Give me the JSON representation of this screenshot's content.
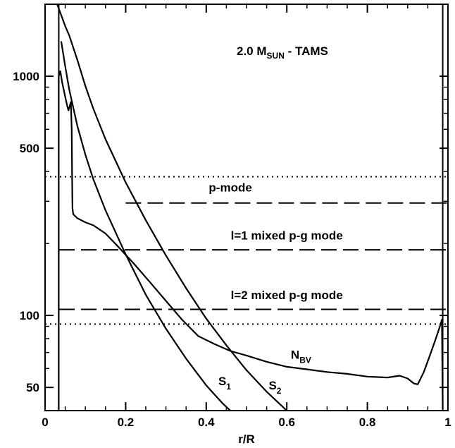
{
  "chart_data": {
    "type": "line",
    "title": "2.0 M",
    "title_sub": "SUN",
    "title_suffix": " - TAMS",
    "xlabel": "r/R",
    "ylabel": "",
    "xlim": [
      0,
      1.0
    ],
    "ylim": [
      40,
      2000
    ],
    "yscale": "log",
    "grid": false,
    "x_ticks": [
      {
        "value": 0,
        "label": "0"
      },
      {
        "value": 0.2,
        "label": "0.2"
      },
      {
        "value": 0.4,
        "label": "0.4"
      },
      {
        "value": 0.6,
        "label": "0.6"
      },
      {
        "value": 0.8,
        "label": "0.8"
      },
      {
        "value": 1.0,
        "label": "1"
      }
    ],
    "y_ticks": [
      {
        "value": 50,
        "label": "50"
      },
      {
        "value": 100,
        "label": "100"
      },
      {
        "value": 500,
        "label": "500"
      },
      {
        "value": 1000,
        "label": "1000"
      }
    ],
    "series": [
      {
        "name": "N",
        "name_sub": "BV",
        "label_at": [
          0.61,
          66
        ],
        "style": "solid",
        "points": [
          [
            0.034,
            40
          ],
          [
            0.034,
            1000
          ],
          [
            0.038,
            1050
          ],
          [
            0.042,
            950
          ],
          [
            0.045,
            900
          ],
          [
            0.05,
            820
          ],
          [
            0.055,
            750
          ],
          [
            0.058,
            720
          ],
          [
            0.062,
            760
          ],
          [
            0.064,
            780
          ],
          [
            0.066,
            600
          ],
          [
            0.067,
            400
          ],
          [
            0.068,
            280
          ],
          [
            0.07,
            265
          ],
          [
            0.08,
            255
          ],
          [
            0.1,
            245
          ],
          [
            0.12,
            238
          ],
          [
            0.15,
            220
          ],
          [
            0.18,
            195
          ],
          [
            0.22,
            165
          ],
          [
            0.26,
            138
          ],
          [
            0.3,
            115
          ],
          [
            0.34,
            96
          ],
          [
            0.38,
            82
          ],
          [
            0.42,
            76
          ],
          [
            0.46,
            71
          ],
          [
            0.5,
            68
          ],
          [
            0.55,
            64
          ],
          [
            0.6,
            61
          ],
          [
            0.65,
            59.5
          ],
          [
            0.7,
            58
          ],
          [
            0.75,
            57
          ],
          [
            0.8,
            55.5
          ],
          [
            0.85,
            55
          ],
          [
            0.88,
            56
          ],
          [
            0.9,
            54.5
          ],
          [
            0.915,
            52
          ],
          [
            0.925,
            51.5
          ],
          [
            0.94,
            58
          ],
          [
            0.955,
            68
          ],
          [
            0.97,
            80
          ],
          [
            0.98,
            90
          ],
          [
            0.985,
            96
          ],
          [
            0.987,
            40
          ]
        ]
      },
      {
        "name": "S",
        "name_sub": "1",
        "label_at": [
          0.43,
          51
        ],
        "style": "solid",
        "points": [
          [
            0.04,
            1400
          ],
          [
            0.05,
            1100
          ],
          [
            0.06,
            880
          ],
          [
            0.08,
            620
          ],
          [
            0.1,
            470
          ],
          [
            0.12,
            370
          ],
          [
            0.15,
            275
          ],
          [
            0.2,
            180
          ],
          [
            0.25,
            122
          ],
          [
            0.3,
            88
          ],
          [
            0.35,
            66
          ],
          [
            0.4,
            51
          ],
          [
            0.44,
            43
          ],
          [
            0.46,
            40
          ]
        ]
      },
      {
        "name": "S",
        "name_sub": "2",
        "label_at": [
          0.555,
          49
        ],
        "style": "solid",
        "points": [
          [
            0.03,
            2000
          ],
          [
            0.04,
            1800
          ],
          [
            0.05,
            1620
          ],
          [
            0.06,
            1480
          ],
          [
            0.08,
            1170
          ],
          [
            0.1,
            910
          ],
          [
            0.12,
            730
          ],
          [
            0.15,
            545
          ],
          [
            0.2,
            360
          ],
          [
            0.25,
            250
          ],
          [
            0.3,
            178
          ],
          [
            0.35,
            130
          ],
          [
            0.4,
            97
          ],
          [
            0.45,
            75
          ],
          [
            0.5,
            59
          ],
          [
            0.55,
            48
          ],
          [
            0.6,
            40
          ]
        ]
      }
    ],
    "reference_lines": [
      {
        "name": "dotted-upper",
        "style": "dotted",
        "y": 380,
        "x_from": 0,
        "x_to": 1.0
      },
      {
        "name": "p-mode",
        "style": "dashed",
        "y": 295,
        "x_from": 0.2,
        "x_to": 1.0
      },
      {
        "name": "l1-mixed",
        "style": "dashed",
        "y": 188,
        "x_from": 0.035,
        "x_to": 1.0
      },
      {
        "name": "l2-mixed",
        "style": "dashed",
        "y": 106,
        "x_from": 0.035,
        "x_to": 1.0
      },
      {
        "name": "dotted-lower",
        "style": "dotted",
        "y": 92,
        "x_from": 0,
        "x_to": 1.0
      }
    ],
    "annotations": [
      {
        "name": "p-mode-label",
        "text": "p-mode",
        "x": 0.46,
        "y": 330
      },
      {
        "name": "l1-mode-label",
        "text": "l=1 mixed p-g mode",
        "x": 0.6,
        "y": 208
      },
      {
        "name": "l2-mode-label",
        "text": "l=2 mixed p-g mode",
        "x": 0.6,
        "y": 117
      }
    ],
    "vertical_lines": [
      {
        "name": "inner-boundary",
        "x": 0.034
      },
      {
        "name": "outer-boundary",
        "x": 0.987
      }
    ]
  }
}
